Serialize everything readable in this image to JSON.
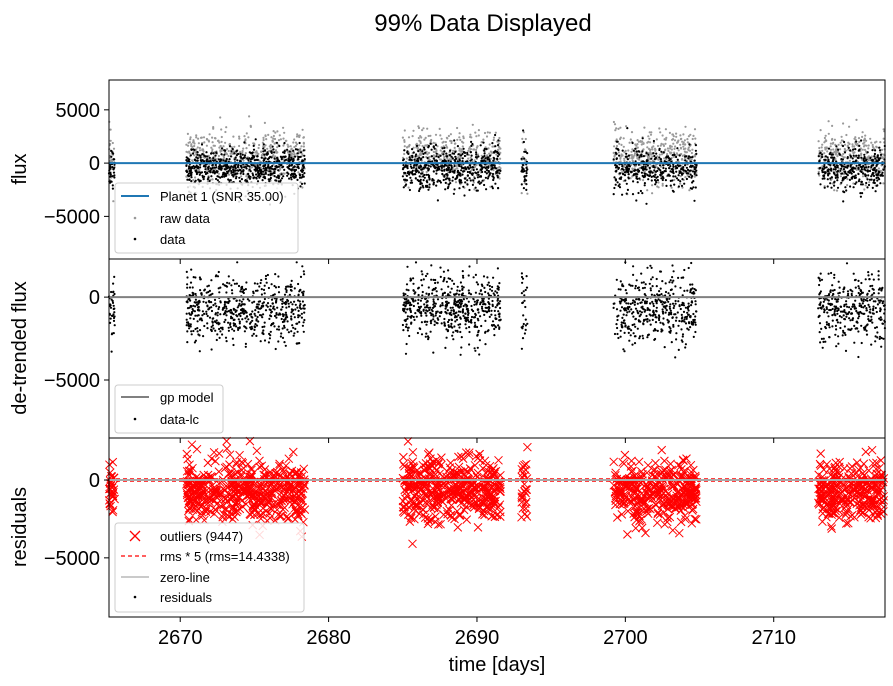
{
  "figure": {
    "title": "99% Data Displayed",
    "xlabel": "time [days]"
  },
  "chart_data": [
    {
      "type": "scatter",
      "panel": "flux",
      "ylabel": "flux",
      "xlim": [
        2665.2,
        2717.5
      ],
      "ylim": [
        -9000,
        7800
      ],
      "xticks": [
        2670,
        2680,
        2690,
        2700,
        2710
      ],
      "yticks": [
        5000,
        0,
        -5000
      ],
      "ytick_labels": [
        "5000",
        "0",
        "−5000"
      ],
      "segments": [
        [
          2665.2,
          2665.6
        ],
        [
          2670.4,
          2678.4
        ],
        [
          2685.0,
          2691.6
        ],
        [
          2693.0,
          2693.4
        ],
        [
          2699.2,
          2704.8
        ],
        [
          2713.0,
          2717.5
        ]
      ],
      "series": [
        {
          "name": "Planet 1 (SNR 35.00)",
          "kind": "line",
          "color": "#1f77b4",
          "y": 0
        },
        {
          "name": "raw data",
          "kind": "scatter",
          "color": "#999999",
          "center": 600,
          "spread": 1200,
          "point_count": 1700
        },
        {
          "name": "data",
          "kind": "scatter",
          "color": "#000000",
          "center": -500,
          "spread": 1000,
          "point_count": 2000
        }
      ],
      "legend": "lower-left"
    },
    {
      "type": "scatter",
      "panel": "detrended",
      "ylabel": "de-trended flux",
      "xlim": [
        2665.2,
        2717.5
      ],
      "ylim": [
        -8500,
        2300
      ],
      "xticks": [
        2670,
        2680,
        2690,
        2700,
        2710
      ],
      "yticks": [
        0,
        -5000
      ],
      "ytick_labels": [
        "0",
        "−5000"
      ],
      "series": [
        {
          "name": "gp model",
          "kind": "line",
          "color": "#808080",
          "y": 0
        },
        {
          "name": "data-lc",
          "kind": "scatter",
          "color": "#000000",
          "center": -700,
          "spread": 1000,
          "point_count": 2000
        }
      ],
      "legend": "lower-left"
    },
    {
      "type": "scatter",
      "panel": "residuals",
      "ylabel": "residuals",
      "xlim": [
        2665.2,
        2717.5
      ],
      "ylim": [
        -8800,
        2700
      ],
      "xticks": [
        2670,
        2680,
        2690,
        2700,
        2710
      ],
      "xtick_labels": [
        "2670",
        "2680",
        "2690",
        "2700",
        "2710"
      ],
      "yticks": [
        0,
        -5000
      ],
      "ytick_labels": [
        "0",
        "−5000"
      ],
      "series": [
        {
          "name": "outliers (9447)",
          "kind": "x-marker",
          "color": "#ff0000",
          "center": -700,
          "spread": 1000,
          "point_count": 1600
        },
        {
          "name": "rms * 5 (rms=14.4338)",
          "kind": "dashed-line",
          "color": "#ff0000",
          "y": [
            72,
            -72
          ]
        },
        {
          "name": "zero-line",
          "kind": "line",
          "color": "#aaaaaa",
          "y": 0
        },
        {
          "name": "residuals",
          "kind": "scatter",
          "color": "#000000"
        }
      ],
      "legend": "lower-left"
    }
  ]
}
